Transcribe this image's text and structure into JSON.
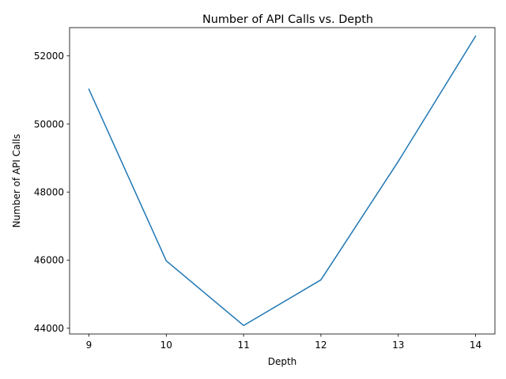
{
  "chart_data": {
    "type": "line",
    "title": "Number of API Calls vs. Depth",
    "xlabel": "Depth",
    "ylabel": "Number of API Calls",
    "x": [
      9,
      10,
      11,
      12,
      13,
      14
    ],
    "series": [
      {
        "values": [
          51020,
          45980,
          44080,
          45420,
          48900,
          52580
        ],
        "color": "#1f77b4"
      }
    ],
    "xlim": [
      8.75,
      14.25
    ],
    "ylim": [
      43830,
      52830
    ],
    "xticks": [
      9,
      10,
      11,
      12,
      13,
      14
    ],
    "yticks": [
      44000,
      46000,
      48000,
      50000,
      52000
    ],
    "grid": false,
    "legend": "none"
  }
}
